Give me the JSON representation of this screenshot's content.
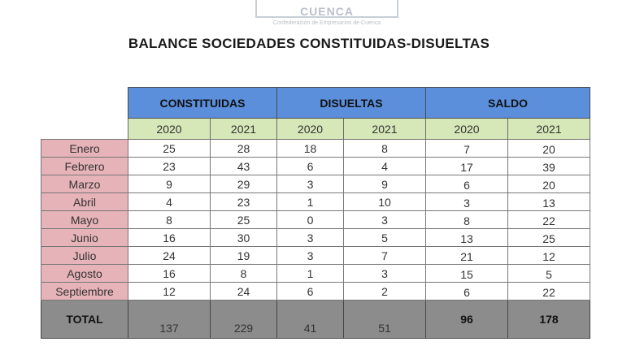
{
  "logo": {
    "name": "CUENCA",
    "subtitle": "Confederación de Empresarios de Cuenca"
  },
  "title": "BALANCE SOCIEDADES CONSTITUIDAS-DISUELTAS",
  "groups": [
    "CONSTITUIDAS",
    "DISUELTAS",
    "SALDO"
  ],
  "years": [
    "2020",
    "2021",
    "2020",
    "2021",
    "2020",
    "2021"
  ],
  "rows": [
    {
      "month": "Enero",
      "values": [
        "25",
        "28",
        "18",
        "8",
        "7",
        "20"
      ]
    },
    {
      "month": "Febrero",
      "values": [
        "23",
        "43",
        "6",
        "4",
        "17",
        "39"
      ]
    },
    {
      "month": "Marzo",
      "values": [
        "9",
        "29",
        "3",
        "9",
        "6",
        "20"
      ]
    },
    {
      "month": "Abril",
      "values": [
        "4",
        "23",
        "1",
        "10",
        "3",
        "13"
      ]
    },
    {
      "month": "Mayo",
      "values": [
        "8",
        "25",
        "0",
        "3",
        "8",
        "22"
      ]
    },
    {
      "month": "Junio",
      "values": [
        "16",
        "30",
        "3",
        "5",
        "13",
        "25"
      ]
    },
    {
      "month": "Julio",
      "values": [
        "24",
        "19",
        "3",
        "7",
        "21",
        "12"
      ]
    },
    {
      "month": "Agosto",
      "values": [
        "16",
        "8",
        "1",
        "3",
        "15",
        "5"
      ]
    },
    {
      "month": "Septiembre",
      "values": [
        "12",
        "24",
        "6",
        "2",
        "6",
        "22"
      ]
    }
  ],
  "total": {
    "label": "TOTAL",
    "values": [
      "137",
      "229",
      "41",
      "51",
      "96",
      "178"
    ]
  }
}
